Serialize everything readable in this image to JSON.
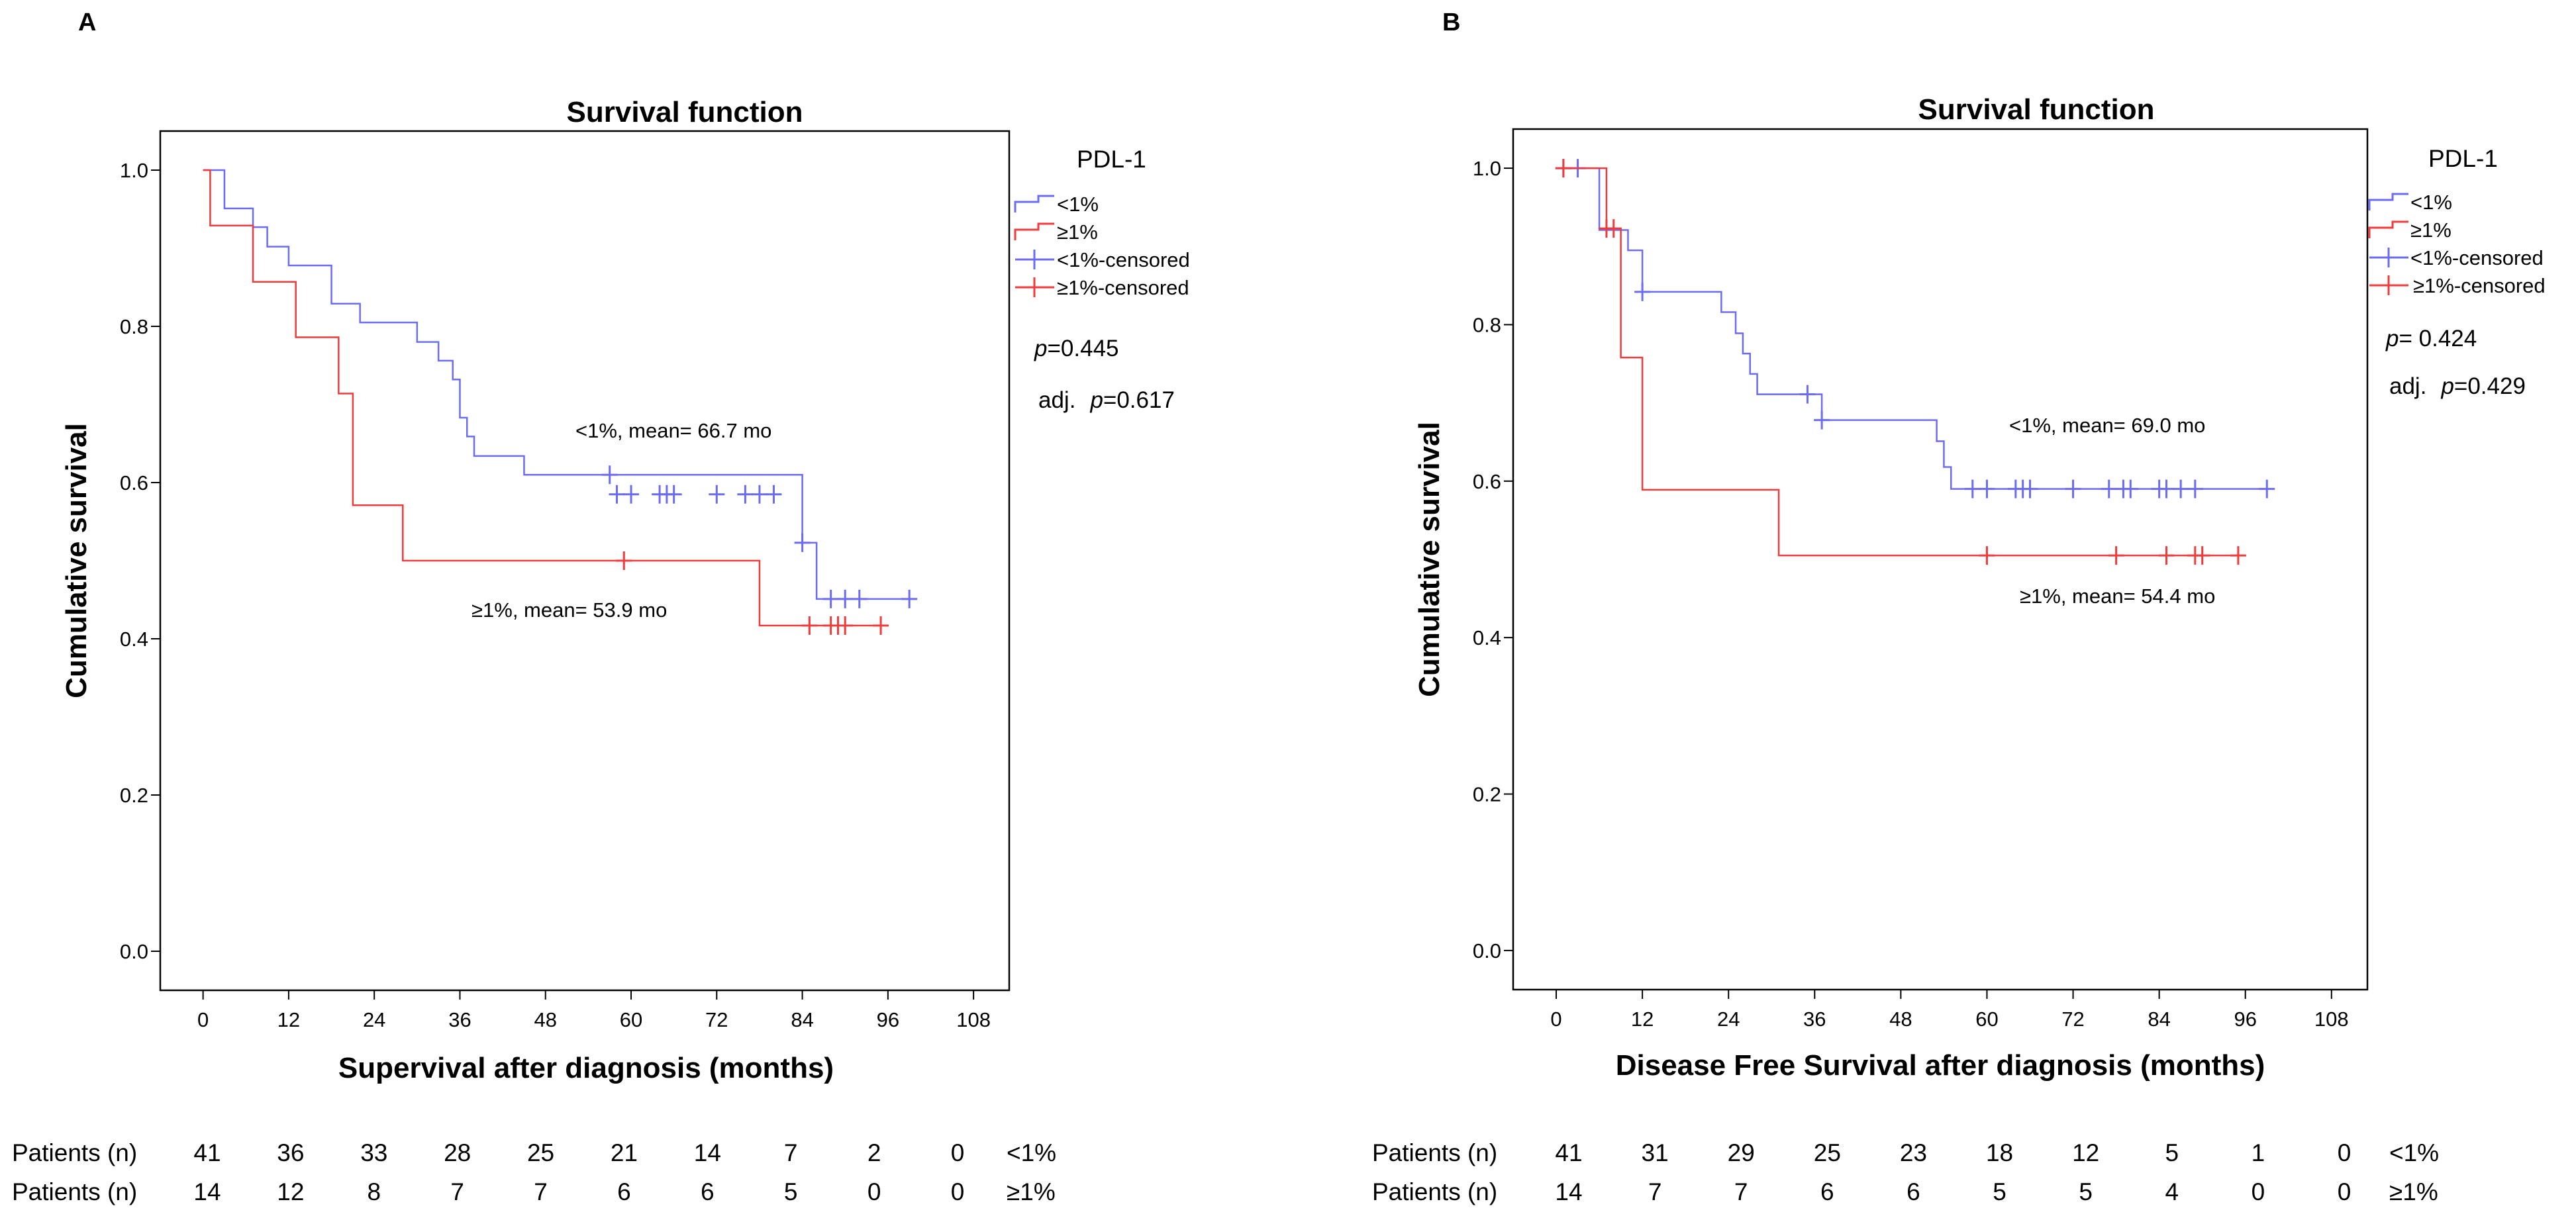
{
  "panels": [
    {
      "label": "A",
      "stats": {
        "p": "p",
        "p_value": "=0.445",
        "adj": "adj.",
        "adj_p": "p",
        "adj_p_value": "=0.617"
      },
      "annotations": {
        "group1": "<1%, mean= 66.7 mo",
        "group2": "≥1%, mean= 53.9 mo"
      },
      "risk_table": {
        "row_label": "Patients (n)",
        "rows": [
          {
            "group": "<1%",
            "values": [
              "41",
              "36",
              "33",
              "28",
              "25",
              "21",
              "14",
              "7",
              "2",
              "0"
            ]
          },
          {
            "group": "≥1%",
            "values": [
              "14",
              "12",
              "8",
              "7",
              "7",
              "6",
              "6",
              "5",
              "0",
              "0"
            ]
          }
        ]
      }
    },
    {
      "label": "B",
      "stats": {
        "p": "p",
        "p_value": "= 0.424",
        "adj": "adj.",
        "adj_p": "p",
        "adj_p_value": "=0.429"
      },
      "annotations": {
        "group1": "<1%, mean= 69.0 mo",
        "group2": "≥1%, mean= 54.4 mo"
      },
      "risk_table": {
        "row_label": "Patients (n)",
        "rows": [
          {
            "group": "<1%",
            "values": [
              "41",
              "31",
              "29",
              "25",
              "23",
              "18",
              "12",
              "5",
              "1",
              "0"
            ]
          },
          {
            "group": "≥1%",
            "values": [
              "14",
              "7",
              "7",
              "6",
              "6",
              "5",
              "5",
              "4",
              "0",
              "0"
            ]
          }
        ]
      }
    }
  ],
  "chart_data": [
    {
      "type": "line",
      "subtype": "kaplan-meier step",
      "title": "Survival function",
      "xlabel": "Supervival after diagnosis (months)",
      "ylabel": "Cumulative survival",
      "xlim": [
        -6,
        113
      ],
      "ylim": [
        -0.05,
        1.05
      ],
      "xticks": [
        0,
        12,
        24,
        36,
        48,
        60,
        72,
        84,
        96,
        108
      ],
      "yticks": [
        0.0,
        0.2,
        0.4,
        0.6,
        0.8,
        1.0
      ],
      "ytick_labels": [
        "0.0",
        "0.2",
        "0.4",
        "0.6",
        "0.8",
        "1.0"
      ],
      "legend": {
        "title": "PDL-1",
        "position": "right",
        "entries": [
          "<1%",
          "≥1%",
          "<1%-censored",
          "≥1%-censored"
        ]
      },
      "series": [
        {
          "name": "<1%",
          "color": "#6b6bf5",
          "steps": [
            [
              0,
              1.0
            ],
            [
              3,
              0.951
            ],
            [
              7,
              0.927
            ],
            [
              9,
              0.902
            ],
            [
              12,
              0.878
            ],
            [
              18,
              0.829
            ],
            [
              22,
              0.805
            ],
            [
              30,
              0.78
            ],
            [
              33,
              0.756
            ],
            [
              35,
              0.732
            ],
            [
              36,
              0.683
            ],
            [
              37,
              0.659
            ],
            [
              38,
              0.634
            ],
            [
              45,
              0.61
            ],
            [
              84,
              0.523
            ],
            [
              86,
              0.451
            ],
            [
              99,
              0.451
            ]
          ],
          "censored": [
            [
              57,
              0.61
            ],
            [
              58,
              0.585
            ],
            [
              60,
              0.585
            ],
            [
              64,
              0.585
            ],
            [
              65,
              0.585
            ],
            [
              66,
              0.585
            ],
            [
              72,
              0.585
            ],
            [
              76,
              0.585
            ],
            [
              78,
              0.585
            ],
            [
              80,
              0.585
            ],
            [
              84,
              0.523
            ],
            [
              88,
              0.451
            ],
            [
              90,
              0.451
            ],
            [
              92,
              0.451
            ],
            [
              99,
              0.451
            ]
          ]
        },
        {
          "name": "≥1%",
          "color": "#ef3b3b",
          "steps": [
            [
              0,
              1.0
            ],
            [
              1,
              0.929
            ],
            [
              7,
              0.857
            ],
            [
              13,
              0.786
            ],
            [
              19,
              0.714
            ],
            [
              21,
              0.571
            ],
            [
              28,
              0.5
            ],
            [
              78,
              0.417
            ],
            [
              95,
              0.417
            ]
          ],
          "censored": [
            [
              59,
              0.5
            ],
            [
              85,
              0.417
            ],
            [
              88,
              0.417
            ],
            [
              89,
              0.417
            ],
            [
              90,
              0.417
            ],
            [
              95,
              0.417
            ]
          ]
        }
      ]
    },
    {
      "type": "line",
      "subtype": "kaplan-meier step",
      "title": "Survival function",
      "xlabel": "Disease Free Survival after diagnosis (months)",
      "ylabel": "Cumulative survival",
      "xlim": [
        -6,
        113
      ],
      "ylim": [
        -0.05,
        1.05
      ],
      "xticks": [
        0,
        12,
        24,
        36,
        48,
        60,
        72,
        84,
        96,
        108
      ],
      "yticks": [
        0.0,
        0.2,
        0.4,
        0.6,
        0.8,
        1.0
      ],
      "ytick_labels": [
        "0.0",
        "0.2",
        "0.4",
        "0.6",
        "0.8",
        "1.0"
      ],
      "legend": {
        "title": "PDL-1",
        "position": "right",
        "entries": [
          "<1%",
          "≥1%",
          "<1%-censored",
          "≥1%-censored"
        ]
      },
      "series": [
        {
          "name": "<1%",
          "color": "#6b6bf5",
          "steps": [
            [
              0,
              1.0
            ],
            [
              6,
              0.921
            ],
            [
              10,
              0.895
            ],
            [
              12,
              0.842
            ],
            [
              23,
              0.816
            ],
            [
              25,
              0.789
            ],
            [
              26,
              0.763
            ],
            [
              27,
              0.737
            ],
            [
              28,
              0.711
            ],
            [
              37,
              0.678
            ],
            [
              53,
              0.651
            ],
            [
              54,
              0.618
            ],
            [
              55,
              0.59
            ],
            [
              99,
              0.59
            ]
          ],
          "censored": [
            [
              1,
              1.0
            ],
            [
              3,
              1.0
            ],
            [
              12,
              0.842
            ],
            [
              35,
              0.711
            ],
            [
              37,
              0.678
            ],
            [
              58,
              0.59
            ],
            [
              60,
              0.59
            ],
            [
              64,
              0.59
            ],
            [
              65,
              0.59
            ],
            [
              66,
              0.59
            ],
            [
              72,
              0.59
            ],
            [
              77,
              0.59
            ],
            [
              79,
              0.59
            ],
            [
              80,
              0.59
            ],
            [
              84,
              0.59
            ],
            [
              85,
              0.59
            ],
            [
              87,
              0.59
            ],
            [
              89,
              0.59
            ],
            [
              99,
              0.59
            ]
          ]
        },
        {
          "name": "≥1%",
          "color": "#ef3b3b",
          "steps": [
            [
              0,
              1.0
            ],
            [
              7,
              0.923
            ],
            [
              9,
              0.758
            ],
            [
              12,
              0.589
            ],
            [
              31,
              0.505
            ],
            [
              95,
              0.505
            ]
          ],
          "censored": [
            [
              1,
              1.0
            ],
            [
              7,
              0.923
            ],
            [
              8,
              0.923
            ],
            [
              60,
              0.505
            ],
            [
              78,
              0.505
            ],
            [
              85,
              0.505
            ],
            [
              89,
              0.505
            ],
            [
              90,
              0.505
            ],
            [
              95,
              0.505
            ]
          ]
        }
      ]
    }
  ]
}
